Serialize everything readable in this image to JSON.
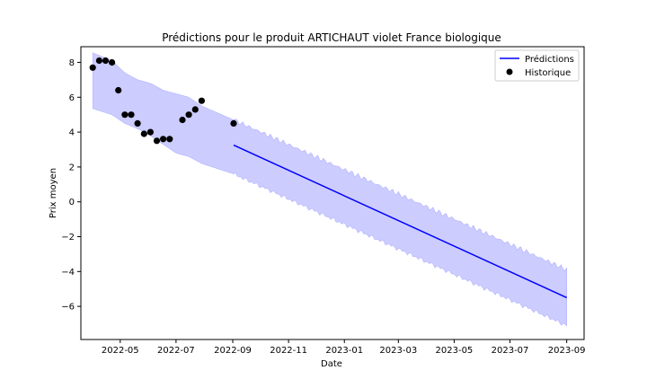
{
  "chart_data": {
    "type": "line",
    "title": "Prédictions pour le produit ARTICHAUT violet France biologique",
    "xlabel": "Date",
    "ylabel": "Prix moyen",
    "ylim": [
      -7.9,
      8.9
    ],
    "xlim": [
      "2022-03-19",
      "2023-09-20"
    ],
    "x_ticks": [
      "2022-05",
      "2022-07",
      "2022-09",
      "2022-11",
      "2023-01",
      "2023-03",
      "2023-05",
      "2023-07",
      "2023-09"
    ],
    "y_ticks": [
      8,
      6,
      4,
      2,
      0,
      -2,
      -4,
      -6
    ],
    "grid": false,
    "legend_position": "top-right",
    "legend": [
      "Prédictions",
      "Historique"
    ],
    "colors": {
      "prediction": "#0000ff",
      "band": "#ccccff",
      "band_edge": "#b3b3ff",
      "history": "#000000"
    },
    "series": [
      {
        "name": "Historique",
        "kind": "scatter",
        "points": [
          {
            "x": "2022-04-01",
            "y": 7.7
          },
          {
            "x": "2022-04-08",
            "y": 8.1
          },
          {
            "x": "2022-04-15",
            "y": 8.1
          },
          {
            "x": "2022-04-22",
            "y": 8.0
          },
          {
            "x": "2022-04-29",
            "y": 6.4
          },
          {
            "x": "2022-05-06",
            "y": 5.0
          },
          {
            "x": "2022-05-13",
            "y": 5.0
          },
          {
            "x": "2022-05-20",
            "y": 4.5
          },
          {
            "x": "2022-05-27",
            "y": 3.9
          },
          {
            "x": "2022-06-03",
            "y": 4.0
          },
          {
            "x": "2022-06-10",
            "y": 3.5
          },
          {
            "x": "2022-06-17",
            "y": 3.6
          },
          {
            "x": "2022-06-24",
            "y": 3.6
          },
          {
            "x": "2022-07-08",
            "y": 4.7
          },
          {
            "x": "2022-07-15",
            "y": 5.0
          },
          {
            "x": "2022-07-22",
            "y": 5.3
          },
          {
            "x": "2022-07-29",
            "y": 5.8
          },
          {
            "x": "2022-09-02",
            "y": 4.5
          }
        ]
      },
      {
        "name": "Prédictions",
        "kind": "line",
        "points": [
          {
            "x": "2022-09-02",
            "y": 3.25
          },
          {
            "x": "2023-09-01",
            "y": -5.5
          }
        ]
      }
    ],
    "confidence_band": {
      "upper": [
        {
          "x": "2022-04-01",
          "y": 8.55
        },
        {
          "x": "2022-04-22",
          "y": 8.1
        },
        {
          "x": "2022-05-06",
          "y": 7.4
        },
        {
          "x": "2022-05-20",
          "y": 7.0
        },
        {
          "x": "2022-06-03",
          "y": 6.8
        },
        {
          "x": "2022-06-17",
          "y": 6.4
        },
        {
          "x": "2022-07-01",
          "y": 6.2
        },
        {
          "x": "2022-07-15",
          "y": 6.0
        },
        {
          "x": "2022-07-29",
          "y": 5.5
        },
        {
          "x": "2022-09-02",
          "y": 4.7
        },
        {
          "x": "2023-09-01",
          "y": -3.9
        }
      ],
      "lower": [
        {
          "x": "2022-04-01",
          "y": 5.35
        },
        {
          "x": "2022-04-22",
          "y": 5.0
        },
        {
          "x": "2022-05-06",
          "y": 4.5
        },
        {
          "x": "2022-05-20",
          "y": 4.2
        },
        {
          "x": "2022-06-03",
          "y": 3.8
        },
        {
          "x": "2022-06-17",
          "y": 3.3
        },
        {
          "x": "2022-07-01",
          "y": 2.8
        },
        {
          "x": "2022-07-15",
          "y": 2.6
        },
        {
          "x": "2022-07-29",
          "y": 2.2
        },
        {
          "x": "2022-09-02",
          "y": 1.6
        },
        {
          "x": "2023-09-01",
          "y": -7.1
        }
      ]
    }
  }
}
